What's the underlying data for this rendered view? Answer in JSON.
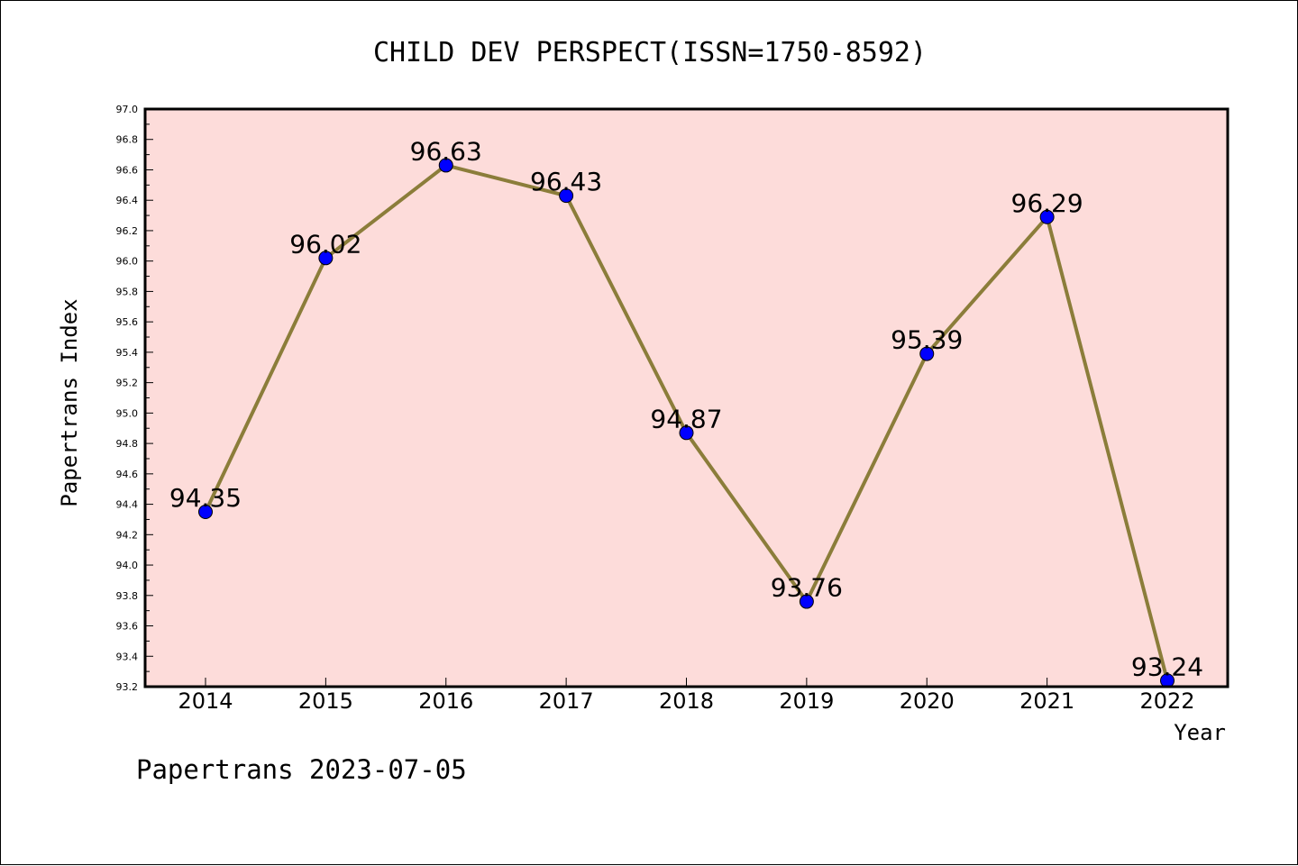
{
  "chart_data": {
    "type": "line",
    "title": "CHILD DEV PERSPECT(ISSN=1750-8592)",
    "xlabel": "Year",
    "ylabel": "Papertrans Index",
    "categories": [
      "2014",
      "2015",
      "2016",
      "2017",
      "2018",
      "2019",
      "2020",
      "2021",
      "2022"
    ],
    "values": [
      94.35,
      96.02,
      96.63,
      96.43,
      94.87,
      93.76,
      95.39,
      96.29,
      93.24
    ],
    "data_labels": [
      "94.35",
      "96.02",
      "96.63",
      "96.43",
      "94.87",
      "93.76",
      "95.39",
      "96.29",
      "93.24"
    ],
    "ylim": [
      93.2,
      97.0
    ],
    "yticks": [
      "93.2",
      "93.4",
      "93.6",
      "93.8",
      "94.0",
      "94.2",
      "94.4",
      "94.6",
      "94.8",
      "95.0",
      "95.2",
      "95.4",
      "95.6",
      "95.8",
      "96.0",
      "96.2",
      "96.4",
      "96.6",
      "96.8",
      "97.0"
    ],
    "grid": false,
    "colors": {
      "plot_background": "#fddcda",
      "line": "#8b7d3a",
      "marker": "#0000ff"
    }
  },
  "footer": "Papertrans 2023-07-05"
}
